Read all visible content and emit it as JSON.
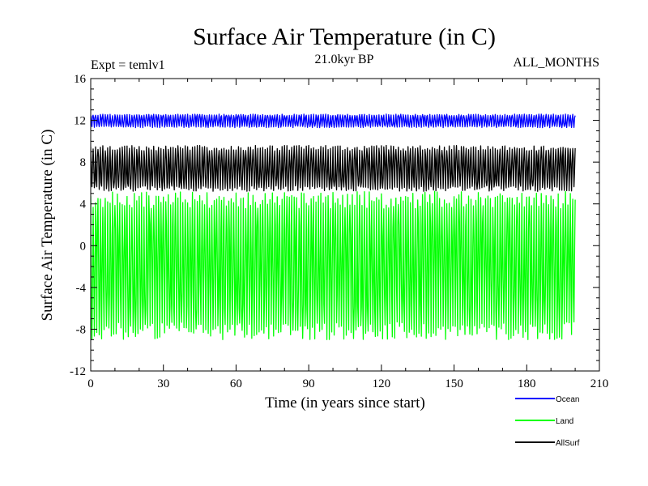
{
  "chart_data": {
    "type": "line",
    "title": "Surface Air Temperature (in C)",
    "subtitle_left": "Expt = temlv1",
    "subtitle_center": "21.0kyr BP",
    "subtitle_right": "ALL_MONTHS",
    "xlabel": "Time (in years since start)",
    "ylabel": "Surface Air Temperature (in C)",
    "xlim": [
      0,
      210
    ],
    "ylim": [
      -12,
      16
    ],
    "x_ticks": [
      0,
      30,
      60,
      90,
      120,
      150,
      180,
      210
    ],
    "x_tick_labels": [
      "0",
      "30",
      "60",
      "90",
      "120",
      "150",
      "180",
      "210"
    ],
    "y_ticks": [
      -12,
      -8,
      -4,
      0,
      4,
      8,
      12,
      16
    ],
    "y_tick_labels": [
      "-12",
      "-8",
      "-4",
      "0",
      "4",
      "8",
      "12",
      "16"
    ],
    "x_range": [
      0,
      200
    ],
    "cycles_per_year": 1,
    "legend_position": "bottom-right",
    "series": [
      {
        "name": "Ocean",
        "color": "#0000ff",
        "min": 11.3,
        "max": 12.6,
        "mean": 12.0
      },
      {
        "name": "Land",
        "color": "#00ff00",
        "min": -9.0,
        "max": 5.2,
        "mean": -2.0
      },
      {
        "name": "AllSurf",
        "color": "#000000",
        "min": 5.2,
        "max": 9.6,
        "mean": 7.3
      }
    ]
  }
}
